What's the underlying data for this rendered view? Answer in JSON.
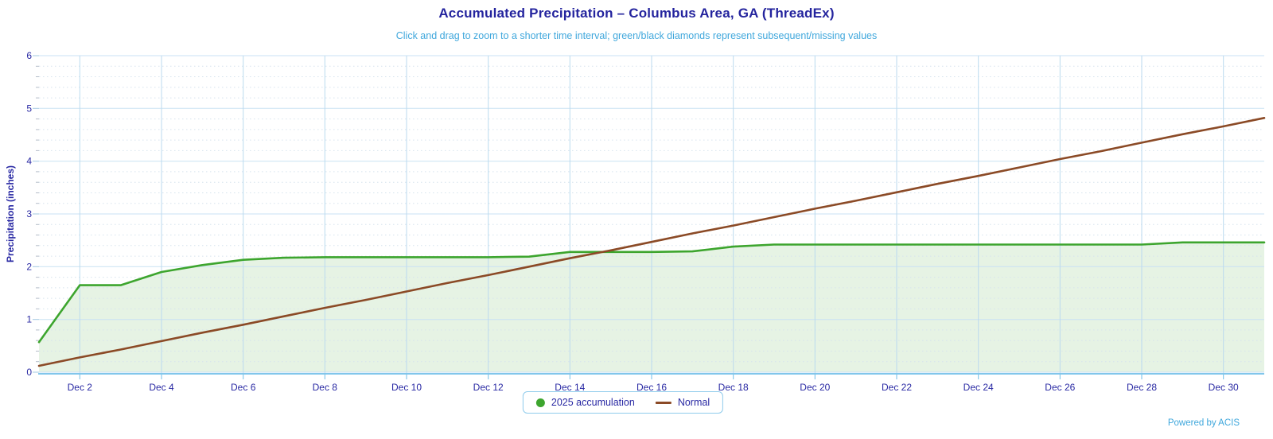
{
  "header": {
    "title": "Accumulated Precipitation – Columbus Area, GA (ThreadEx)",
    "subtitle": "Click and drag to zoom to a shorter time interval; green/black diamonds represent subsequent/missing values"
  },
  "footer": {
    "powered_by": "Powered by ACIS"
  },
  "colors": {
    "navy_text": "#2828a3",
    "light_blue_text": "#3fa7dc",
    "grid_major": "#c9e2f4",
    "grid_vertical": "#bbdaef",
    "grid_minor_dotted": "#d6e3ed",
    "axis_line": "#6fbee8",
    "legend_border": "#8fcbec",
    "accumulation_green": "#3da52e",
    "accumulation_fill": "rgba(61,165,46,0.13)",
    "normal_brown": "#8b4a26"
  },
  "legend": {
    "items": [
      {
        "label": "2025 accumulation",
        "marker": "circle",
        "color": "#3da52e"
      },
      {
        "label": "Normal",
        "marker": "line",
        "color": "#8b4a26"
      }
    ]
  },
  "chart_data": {
    "type": "line",
    "title": "Accumulated Precipitation – Columbus Area, GA (ThreadEx)",
    "subtitle": "Click and drag to zoom to a shorter time interval; green/black diamonds represent subsequent/missing values",
    "xlabel": "",
    "ylabel": "Precipitation (inches)",
    "ylim": [
      0,
      6
    ],
    "y_major_ticks": [
      0,
      1,
      2,
      3,
      4,
      5,
      6
    ],
    "y_minor_step": 0.2,
    "grid": true,
    "legend_position": "bottom-center",
    "x_unit": "day of December 2025",
    "x": [
      1,
      2,
      3,
      4,
      5,
      6,
      7,
      8,
      9,
      10,
      11,
      12,
      13,
      14,
      15,
      16,
      17,
      18,
      19,
      20,
      21,
      22,
      23,
      24,
      25,
      26,
      27,
      28,
      29,
      30,
      31
    ],
    "x_tick_days": [
      2,
      4,
      6,
      8,
      10,
      12,
      14,
      16,
      18,
      20,
      22,
      24,
      26,
      28,
      30
    ],
    "x_tick_labels": [
      "Dec 2",
      "Dec 4",
      "Dec 6",
      "Dec 8",
      "Dec 10",
      "Dec 12",
      "Dec 14",
      "Dec 16",
      "Dec 18",
      "Dec 20",
      "Dec 22",
      "Dec 24",
      "Dec 26",
      "Dec 28",
      "Dec 30"
    ],
    "series": [
      {
        "name": "2025 accumulation",
        "type": "area",
        "color": "#3da52e",
        "fill_color": "rgba(61,165,46,0.13)",
        "marker": "circle",
        "values": [
          0.57,
          1.65,
          1.65,
          1.9,
          2.03,
          2.13,
          2.17,
          2.18,
          2.18,
          2.18,
          2.18,
          2.18,
          2.19,
          2.28,
          2.28,
          2.28,
          2.29,
          2.38,
          2.42,
          2.42,
          2.42,
          2.42,
          2.42,
          2.42,
          2.42,
          2.42,
          2.42,
          2.42,
          2.46,
          2.46,
          2.46
        ]
      },
      {
        "name": "Normal",
        "type": "line",
        "color": "#8b4a26",
        "marker": "line",
        "values": [
          0.12,
          0.28,
          0.43,
          0.59,
          0.75,
          0.9,
          1.06,
          1.22,
          1.37,
          1.53,
          1.69,
          1.84,
          2.0,
          2.16,
          2.31,
          2.47,
          2.63,
          2.78,
          2.94,
          3.1,
          3.25,
          3.41,
          3.57,
          3.72,
          3.88,
          4.04,
          4.19,
          4.35,
          4.51,
          4.66,
          4.82
        ]
      }
    ]
  }
}
